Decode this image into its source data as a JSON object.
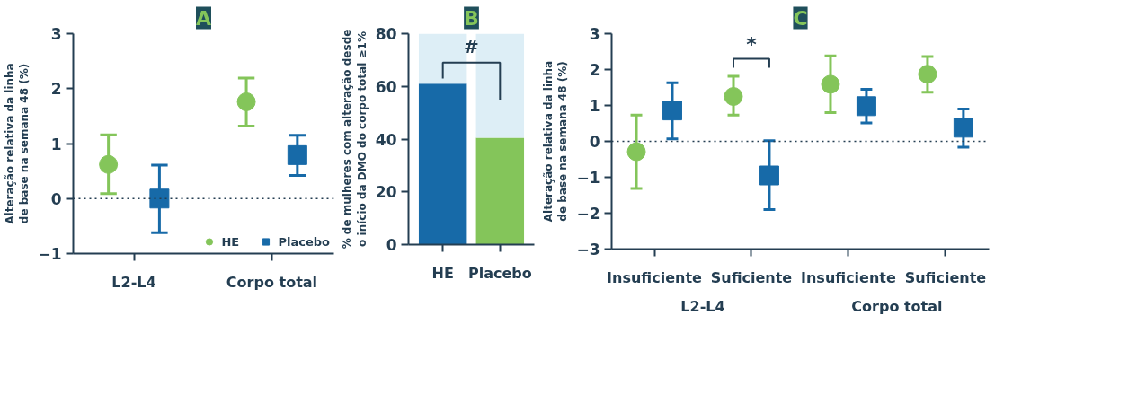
{
  "chart_data": [
    {
      "type": "scatter",
      "title": "A",
      "ylabel": "Alteração relativa da linha\nde base na semana 48 (%)",
      "categories": [
        "L2-L4",
        "Corpo total"
      ],
      "series": [
        {
          "name": "HE",
          "color": "#84c55a",
          "marker": "circle",
          "values": [
            0.62,
            1.76
          ],
          "errors": [
            [
              0.09,
              1.16
            ],
            [
              1.32,
              2.19
            ]
          ]
        },
        {
          "name": "Placebo",
          "color": "#176aa8",
          "marker": "square",
          "values": [
            0.0,
            0.79
          ],
          "errors": [
            [
              -0.62,
              0.61
            ],
            [
              0.42,
              1.15
            ]
          ]
        }
      ],
      "ylim": [
        -1,
        3
      ],
      "yticks": [
        -1,
        0,
        1,
        2,
        3
      ],
      "ref_lines": [
        {
          "axis": "y",
          "value": 0,
          "line_style": "dotted",
          "color": "#243e52"
        }
      ],
      "legend": "bottom right",
      "grid": false
    },
    {
      "type": "bar",
      "title": "B",
      "ylabel": "% de mulheres com alteração desde\no início da DMO do corpo total ≥1%",
      "categories": [
        "HE",
        "Placebo"
      ],
      "stacked": true,
      "series": [
        {
          "colors": [
            "#176aa8",
            "#84c55a"
          ],
          "values": [
            61,
            40.5
          ]
        },
        {
          "color": "#ddeef6",
          "values": [
            19,
            39.5
          ]
        }
      ],
      "ylim": [
        0,
        80
      ],
      "yticks": [
        0,
        20,
        40,
        60,
        80
      ],
      "annotations": [
        "#"
      ],
      "grid": false
    },
    {
      "type": "scatter",
      "title": "C",
      "ylabel": "Alteração relativa da linha\nde base na semana 48 (%)",
      "categories": [
        "Insuficiente",
        "Suficiente",
        "Insuficiente",
        "Suficiente"
      ],
      "series": [
        {
          "color": "#84c55a",
          "marker": "circle",
          "values": [
            -0.29,
            1.25,
            1.59,
            1.87
          ],
          "errors": [
            [
              -1.31,
              0.73
            ],
            [
              0.73,
              1.81
            ],
            [
              0.8,
              2.38
            ],
            [
              1.37,
              2.36
            ]
          ]
        },
        {
          "color": "#176aa8",
          "marker": "square",
          "values": [
            0.86,
            -0.95,
            0.98,
            0.38
          ],
          "errors": [
            [
              0.07,
              1.63
            ],
            [
              -1.9,
              0.02
            ],
            [
              0.51,
              1.45
            ],
            [
              -0.16,
              0.9
            ]
          ]
        }
      ],
      "ylim": [
        -3,
        3
      ],
      "yticks": [
        -3,
        -2,
        -1,
        0,
        1,
        2,
        3
      ],
      "ref_lines": [
        {
          "axis": "y",
          "value": 0,
          "line_style": "dotted",
          "color": "#243e52"
        }
      ],
      "annotations": [
        "*",
        "L2-L4",
        "Corpo total"
      ],
      "grid": false
    }
  ]
}
